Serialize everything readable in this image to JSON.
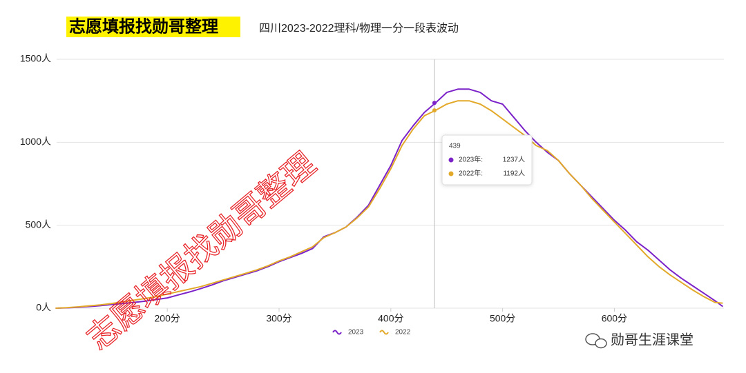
{
  "chart_data": {
    "type": "line",
    "title": "志愿填报找勋哥整理",
    "subtitle": "四川2023-2022理科/物理一分一段表波动",
    "x": [
      100,
      110,
      120,
      130,
      140,
      150,
      160,
      170,
      180,
      190,
      200,
      210,
      220,
      230,
      240,
      250,
      260,
      270,
      280,
      290,
      300,
      310,
      320,
      330,
      340,
      350,
      360,
      370,
      380,
      390,
      400,
      410,
      420,
      430,
      440,
      450,
      460,
      470,
      480,
      490,
      500,
      510,
      520,
      530,
      540,
      550,
      560,
      570,
      580,
      590,
      600,
      610,
      620,
      630,
      640,
      650,
      660,
      670,
      680,
      690,
      697
    ],
    "series": [
      {
        "name": "2023",
        "color": "#7b22c9",
        "values": [
          0,
          2,
          5,
          10,
          15,
          22,
          28,
          35,
          42,
          52,
          62,
          80,
          98,
          118,
          140,
          165,
          185,
          205,
          225,
          250,
          280,
          305,
          330,
          360,
          430,
          455,
          490,
          550,
          620,
          740,
          860,
          1010,
          1100,
          1180,
          1237,
          1300,
          1320,
          1320,
          1300,
          1250,
          1230,
          1150,
          1070,
          1000,
          940,
          890,
          810,
          740,
          670,
          600,
          530,
          470,
          400,
          350,
          290,
          230,
          180,
          135,
          90,
          45,
          10
        ]
      },
      {
        "name": "2022",
        "color": "#e3a92a",
        "values": [
          0,
          3,
          8,
          14,
          20,
          28,
          38,
          48,
          58,
          70,
          85,
          100,
          115,
          130,
          150,
          170,
          190,
          210,
          230,
          255,
          285,
          310,
          340,
          370,
          425,
          455,
          490,
          545,
          610,
          720,
          840,
          980,
          1080,
          1160,
          1192,
          1230,
          1250,
          1250,
          1230,
          1190,
          1140,
          1090,
          1040,
          980,
          950,
          890,
          810,
          740,
          660,
          590,
          520,
          450,
          380,
          310,
          250,
          200,
          155,
          110,
          70,
          35,
          30
        ]
      }
    ],
    "xlim": [
      101,
      698
    ],
    "xticks": [
      {
        "value": 200,
        "label": "200分"
      },
      {
        "value": 300,
        "label": "300分"
      },
      {
        "value": 400,
        "label": "400分"
      },
      {
        "value": 500,
        "label": "500分"
      },
      {
        "value": 600,
        "label": "600分"
      }
    ],
    "ylim": [
      0,
      1500
    ],
    "yticks": [
      {
        "value": 0,
        "label": "0人"
      },
      {
        "value": 500,
        "label": "500人"
      },
      {
        "value": 1000,
        "label": "1000人"
      },
      {
        "value": 1500,
        "label": "1500人"
      }
    ],
    "grid": true,
    "tooltip": {
      "x": 439,
      "rows": [
        {
          "name": "2023年:",
          "value": 1237,
          "value_label": "1237人"
        },
        {
          "name": "2022年:",
          "value": 1192,
          "value_label": "1192人"
        }
      ]
    },
    "watermark": "志愿填报找勋哥整理",
    "footer": "勋哥生涯课堂"
  }
}
